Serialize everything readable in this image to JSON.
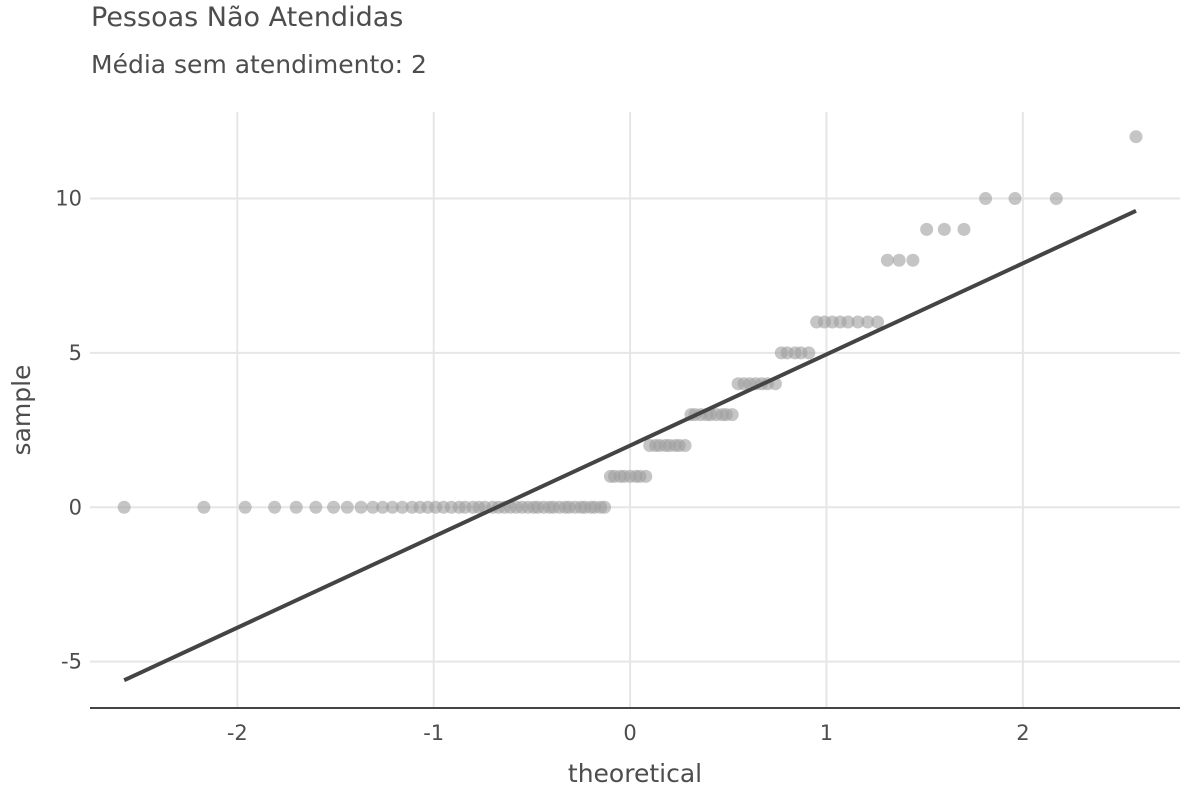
{
  "chart_data": {
    "type": "scatter",
    "title": "Pessoas Não Atendidas",
    "subtitle": "Média sem atendimento: 2",
    "xlabel": "theoretical",
    "ylabel": "sample",
    "xlim": [
      -2.75,
      2.8
    ],
    "ylim": [
      -6.5,
      12.8
    ],
    "x_ticks": [
      -2,
      -1,
      0,
      1,
      2
    ],
    "y_ticks": [
      -5,
      0,
      5,
      10
    ],
    "x_tick_labels": [
      "-2",
      "-1",
      "0",
      "1",
      "2"
    ],
    "y_tick_labels": [
      "-5",
      "0",
      "5",
      "10"
    ],
    "grid": true,
    "colors": {
      "points": "#9e9e9e",
      "line": "#444444",
      "grid": "#e6e6e6",
      "axis": "#444444"
    },
    "points": {
      "y0_x": [
        -2.576,
        -2.17,
        -1.96,
        -1.81,
        -1.7,
        -1.6,
        -1.51,
        -1.44,
        -1.37,
        -1.31,
        -1.26,
        -1.21,
        -1.16,
        -1.11,
        -1.07,
        -1.03,
        -0.99,
        -0.95,
        -0.91,
        -0.87,
        -0.84,
        -0.8,
        -0.77,
        -0.74,
        -0.7,
        -0.67,
        -0.64,
        -0.61,
        -0.58,
        -0.55,
        -0.52,
        -0.49,
        -0.47,
        -0.44,
        -0.41,
        -0.39,
        -0.36,
        -0.33,
        -0.31,
        -0.28,
        -0.25,
        -0.23,
        -0.2,
        -0.18,
        -0.15,
        -0.13
      ],
      "y1_x": [
        -0.1,
        -0.08,
        -0.05,
        -0.03,
        0.0,
        0.03,
        0.05,
        0.08
      ],
      "y2_x": [
        0.1,
        0.13,
        0.15,
        0.18,
        0.2,
        0.23,
        0.25,
        0.28
      ],
      "y3_x": [
        0.31,
        0.33,
        0.36,
        0.39,
        0.41,
        0.44,
        0.47,
        0.49,
        0.52
      ],
      "y4_x": [
        0.55,
        0.58,
        0.61,
        0.64,
        0.67,
        0.7,
        0.74
      ],
      "y5_x": [
        0.77,
        0.8,
        0.84,
        0.87,
        0.91
      ],
      "y6_x": [
        0.95,
        0.99,
        1.03,
        1.07,
        1.11,
        1.16,
        1.21,
        1.26
      ],
      "y8_x": [
        1.31,
        1.37,
        1.44
      ],
      "y9_x": [
        1.51,
        1.6,
        1.7
      ],
      "y10_x": [
        1.81,
        1.96,
        2.17
      ],
      "y12_x": [
        2.576
      ]
    },
    "reference_line": {
      "x": [
        -2.576,
        2.576
      ],
      "y": [
        -5.6,
        9.6
      ]
    }
  }
}
